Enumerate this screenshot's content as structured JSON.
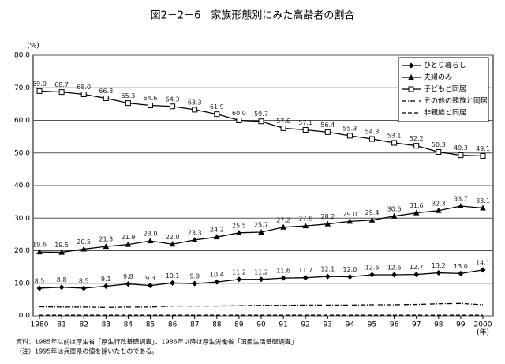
{
  "chart_data": {
    "type": "line",
    "title": "図2－2－6　家族形態別にみた高齢者の割合",
    "y_label": "(%)",
    "x_label": "(年)",
    "notes": [
      "資料：1985年以前は厚生省「厚生行政基礎調査」、1986年以降は厚生労働省「国民生活基礎調査」",
      "（注）1995年は兵庫県の値を除いたものである。"
    ],
    "categories": [
      "1980",
      "81",
      "82",
      "83",
      "84",
      "85",
      "86",
      "87",
      "88",
      "89",
      "90",
      "91",
      "92",
      "93",
      "94",
      "95",
      "96",
      "97",
      "98",
      "99",
      "2000"
    ],
    "ylim": [
      0,
      80
    ],
    "yticks": [
      {
        "value": 0,
        "label": "0.0"
      },
      {
        "value": 10,
        "label": "10.0"
      },
      {
        "value": 20,
        "label": "20.0"
      },
      {
        "value": 30,
        "label": "30.0"
      },
      {
        "value": 40,
        "label": "40.0"
      },
      {
        "value": 50,
        "label": "50.0"
      },
      {
        "value": 60,
        "label": "60.0"
      },
      {
        "value": 70,
        "label": "70.0"
      },
      {
        "value": 80,
        "label": "80.0"
      }
    ],
    "grid": true,
    "legend": "top-right",
    "series": [
      {
        "name": "ひとり暮らし",
        "color": "#000000",
        "marker": "diamond",
        "line_style": "solid",
        "values": [
          8.5,
          8.8,
          8.5,
          9.1,
          9.8,
          9.3,
          10.1,
          9.9,
          10.4,
          11.2,
          11.2,
          11.6,
          11.7,
          12.1,
          12.0,
          12.6,
          12.6,
          12.7,
          13.2,
          13.0,
          14.1
        ],
        "value_labels": [
          "8.5",
          "8.8",
          "8.5",
          "9.1",
          "9.8",
          "9.3",
          "10.1",
          "9.9",
          "10.4",
          "11.2",
          "11.2",
          "11.6",
          "11.7",
          "12.1",
          "12.0",
          "12.6",
          "12.6",
          "12.7",
          "13.2",
          "13.0",
          "14.1"
        ]
      },
      {
        "name": "夫婦のみ",
        "color": "#000000",
        "marker": "triangle",
        "line_style": "solid",
        "values": [
          19.6,
          19.5,
          20.5,
          21.3,
          21.9,
          23.0,
          22.0,
          23.3,
          24.2,
          25.5,
          25.7,
          27.2,
          27.6,
          28.2,
          29.0,
          29.4,
          30.6,
          31.6,
          32.3,
          33.7,
          33.1
        ],
        "value_labels": [
          "19.6",
          "19.5",
          "20.5",
          "21.3",
          "21.9",
          "23.0",
          "22.0",
          "23.3",
          "24.2",
          "25.5",
          "25.7",
          "27.2",
          "27.6",
          "28.2",
          "29.0",
          "29.4",
          "30.6",
          "31.6",
          "32.3",
          "33.7",
          "33.1"
        ]
      },
      {
        "name": "子どもと同居",
        "color": "#000000",
        "marker": "square",
        "line_style": "solid",
        "values": [
          69.0,
          68.7,
          68.0,
          66.8,
          65.3,
          64.6,
          64.3,
          63.3,
          61.9,
          60.0,
          59.7,
          57.6,
          57.1,
          56.4,
          55.3,
          54.3,
          53.1,
          52.2,
          50.3,
          49.3,
          49.1
        ],
        "value_labels": [
          "69.0",
          "68.7",
          "68.0",
          "66.8",
          "65.3",
          "64.6",
          "64.3",
          "63.3",
          "61.9",
          "60.0",
          "59.7",
          "57.6",
          "57.1",
          "56.4",
          "55.3",
          "54.3",
          "53.1",
          "52.2",
          "50.3",
          "49.3",
          "49.1"
        ]
      },
      {
        "name": "その他の親族と同居",
        "color": "#000000",
        "marker": "none",
        "line_style": "dashdot",
        "values": [
          2.8,
          2.7,
          2.7,
          2.6,
          2.7,
          2.7,
          3.0,
          3.0,
          3.0,
          3.1,
          3.2,
          3.2,
          3.3,
          3.3,
          3.3,
          3.4,
          3.4,
          3.5,
          3.7,
          3.8,
          3.4
        ]
      },
      {
        "name": "非親族と同居",
        "color": "#000000",
        "marker": "none",
        "line_style": "dashed",
        "values": [
          0.2,
          0.2,
          0.2,
          0.2,
          0.2,
          0.2,
          0.2,
          0.2,
          0.2,
          0.2,
          0.2,
          0.2,
          0.2,
          0.2,
          0.2,
          0.2,
          0.2,
          0.2,
          0.2,
          0.2,
          0.2
        ]
      }
    ]
  }
}
